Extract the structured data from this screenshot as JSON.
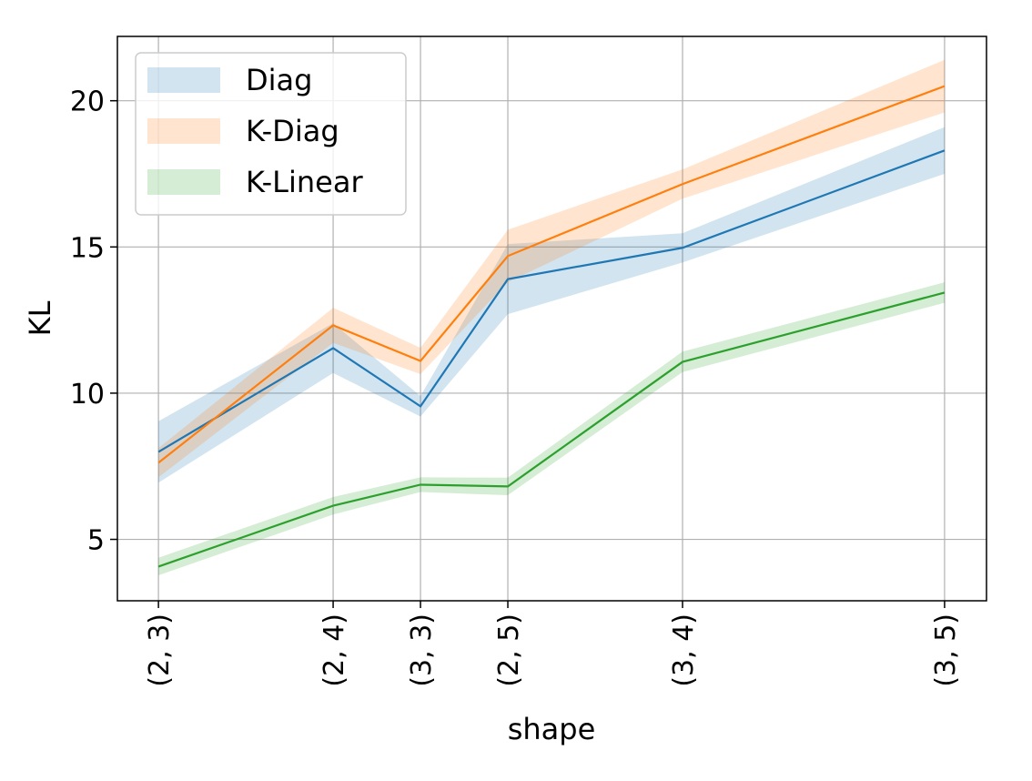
{
  "chart_data": {
    "type": "line",
    "title": "",
    "xlabel": "shape",
    "ylabel": "KL",
    "x": [
      6,
      8,
      9,
      10,
      12,
      15
    ],
    "x_tick_labels": [
      "(2, 3)",
      "(2, 4)",
      "(3, 3)",
      "(2, 5)",
      "(3, 4)",
      "(3, 5)"
    ],
    "xlim": [
      5.53,
      15.48
    ],
    "ylim": [
      2.9,
      22.2
    ],
    "y_ticks": [
      5,
      10,
      15,
      20
    ],
    "grid": true,
    "legend_position": "top-left",
    "series": [
      {
        "name": "Diag",
        "color": "#1f77b4",
        "values": [
          7.99,
          11.54,
          9.55,
          13.9,
          14.97,
          18.3
        ],
        "band": [
          1.05,
          0.85,
          0.35,
          1.2,
          0.5,
          0.8
        ]
      },
      {
        "name": "K-Diag",
        "color": "#ff7f0e",
        "values": [
          7.62,
          12.32,
          11.1,
          14.69,
          17.15,
          20.5
        ],
        "band": [
          0.5,
          0.6,
          0.45,
          0.9,
          0.5,
          0.9
        ]
      },
      {
        "name": "K-Linear",
        "color": "#2ca02c",
        "values": [
          4.07,
          6.15,
          6.87,
          6.81,
          11.07,
          13.44
        ],
        "band": [
          0.3,
          0.3,
          0.25,
          0.3,
          0.35,
          0.35
        ]
      }
    ]
  }
}
